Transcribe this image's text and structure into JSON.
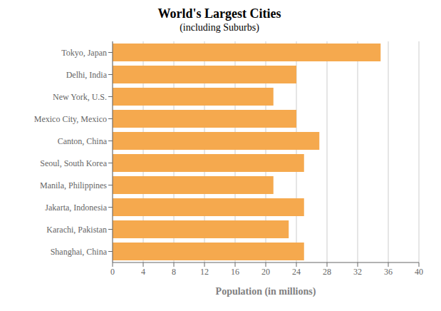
{
  "chart_data": {
    "type": "bar",
    "title": "World's Largest Cities",
    "subtitle": "(including Suburbs)",
    "xlabel": "Population (in millions)",
    "orientation": "horizontal",
    "categories": [
      "Tokyo, Japan",
      "Delhi, India",
      "New York, U.S.",
      "Mexico City, Mexico",
      "Canton, China",
      "Seoul, South Korea",
      "Manila, Philippines",
      "Jakarta, Indonesia",
      "Karachi, Pakistan",
      "Shanghai, China"
    ],
    "values": [
      35,
      24,
      21,
      24,
      27,
      25,
      21,
      25,
      23,
      25
    ],
    "color": "#F5A94E",
    "xlim": [
      0,
      40
    ],
    "xticks": [
      0,
      4,
      8,
      12,
      16,
      20,
      24,
      28,
      32,
      36,
      40
    ],
    "grid": true
  }
}
